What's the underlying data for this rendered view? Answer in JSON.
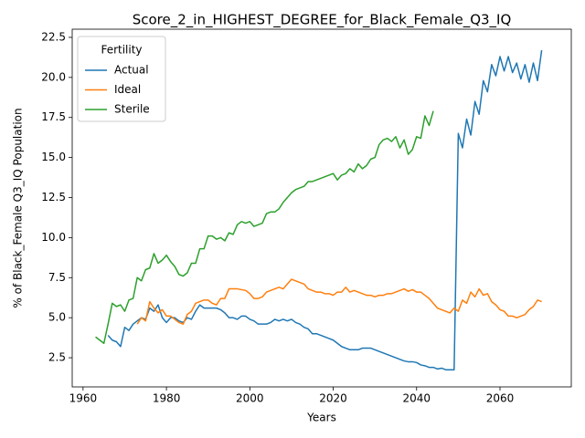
{
  "chart_data": {
    "type": "line",
    "title": "Score_2_in_HIGHEST_DEGREE_for_Black_Female_Q3_IQ",
    "xlabel": "Years",
    "ylabel": "% of Black_Female Q3_IQ Population",
    "legend_title": "Fertility",
    "legend": "upper left",
    "x": [
      1963,
      1964,
      1965,
      1966,
      1967,
      1968,
      1969,
      1970,
      1971,
      1972,
      1973,
      1974,
      1975,
      1976,
      1977,
      1978,
      1979,
      1980,
      1981,
      1982,
      1983,
      1984,
      1985,
      1986,
      1987,
      1988,
      1989,
      1990,
      1991,
      1992,
      1993,
      1994,
      1995,
      1996,
      1997,
      1998,
      1999,
      2000,
      2001,
      2002,
      2003,
      2004,
      2005,
      2006,
      2007,
      2008,
      2009,
      2010,
      2011,
      2012,
      2013,
      2014,
      2015,
      2016,
      2017,
      2018,
      2019,
      2020,
      2021,
      2022,
      2023,
      2024,
      2025,
      2026,
      2027,
      2028,
      2029,
      2030,
      2031,
      2032,
      2033,
      2034,
      2035,
      2036,
      2037,
      2038,
      2039,
      2040,
      2041,
      2042,
      2043,
      2044,
      2045,
      2046,
      2047,
      2048,
      2049,
      2050,
      2051,
      2052,
      2053,
      2054,
      2055,
      2056,
      2057,
      2058,
      2059,
      2060,
      2061,
      2062,
      2063,
      2064,
      2065,
      2066,
      2067,
      2068,
      2069,
      2070
    ],
    "series": [
      {
        "name": "Actual",
        "color": "#1f77b4",
        "values": [
          null,
          null,
          null,
          3.9,
          3.6,
          3.5,
          3.2,
          4.4,
          4.2,
          4.6,
          4.8,
          5.0,
          4.9,
          5.6,
          5.4,
          5.8,
          5.0,
          4.7,
          5.0,
          5.0,
          4.8,
          4.7,
          5.0,
          4.9,
          5.4,
          5.8,
          5.6,
          5.6,
          5.6,
          5.6,
          5.5,
          5.3,
          5.0,
          5.0,
          4.9,
          5.1,
          5.1,
          4.9,
          4.8,
          4.6,
          4.6,
          4.6,
          4.7,
          4.9,
          4.8,
          4.9,
          4.8,
          4.9,
          4.7,
          4.6,
          4.4,
          4.3,
          4.0,
          4.0,
          3.9,
          3.8,
          3.7,
          3.6,
          3.4,
          3.2,
          3.1,
          3.0,
          3.0,
          3.0,
          3.1,
          3.1,
          3.1,
          3.0,
          2.9,
          2.8,
          2.7,
          2.6,
          2.5,
          2.4,
          2.3,
          2.25,
          2.25,
          2.2,
          2.05,
          2.0,
          1.9,
          1.9,
          1.8,
          1.85,
          1.75,
          1.75,
          1.75,
          16.5,
          15.6,
          17.4,
          16.4,
          18.5,
          17.7,
          19.8,
          19.1,
          20.8,
          20.1,
          21.3,
          20.4,
          21.3,
          20.3,
          20.9,
          19.9,
          20.8,
          19.7,
          20.9,
          19.8,
          21.7
        ]
      },
      {
        "name": "Ideal",
        "color": "#ff7f0e",
        "values": [
          null,
          null,
          null,
          null,
          null,
          null,
          null,
          null,
          null,
          null,
          4.6,
          5.0,
          4.8,
          6.0,
          5.6,
          5.3,
          5.5,
          5.1,
          5.1,
          4.9,
          4.7,
          4.6,
          5.2,
          5.4,
          5.9,
          6.0,
          6.1,
          6.1,
          5.9,
          5.8,
          6.2,
          6.2,
          6.8,
          6.8,
          6.8,
          6.75,
          6.7,
          6.5,
          6.2,
          6.2,
          6.3,
          6.6,
          6.7,
          6.8,
          6.9,
          6.8,
          7.1,
          7.4,
          7.3,
          7.2,
          7.1,
          6.8,
          6.7,
          6.6,
          6.6,
          6.5,
          6.5,
          6.4,
          6.6,
          6.6,
          6.9,
          6.6,
          6.7,
          6.6,
          6.5,
          6.4,
          6.4,
          6.3,
          6.4,
          6.4,
          6.5,
          6.5,
          6.6,
          6.7,
          6.8,
          6.65,
          6.75,
          6.6,
          6.6,
          6.4,
          6.2,
          5.9,
          5.6,
          5.5,
          5.4,
          5.3,
          5.6,
          5.4,
          6.1,
          5.9,
          6.6,
          6.3,
          6.8,
          6.4,
          6.5,
          6.0,
          5.8,
          5.5,
          5.4,
          5.1,
          5.1,
          5.0,
          5.1,
          5.2,
          5.5,
          5.7,
          6.1,
          6.0
        ]
      },
      {
        "name": "Sterile",
        "color": "#2ca02c",
        "values": [
          3.8,
          3.6,
          3.4,
          4.6,
          5.9,
          5.7,
          5.8,
          5.4,
          6.1,
          6.2,
          7.5,
          7.3,
          8.0,
          8.1,
          9.0,
          8.4,
          8.6,
          8.9,
          8.5,
          8.2,
          7.7,
          7.6,
          7.8,
          8.4,
          8.4,
          9.3,
          9.3,
          10.1,
          10.1,
          9.9,
          10.0,
          9.8,
          10.3,
          10.2,
          10.8,
          11.0,
          10.9,
          11.0,
          10.7,
          10.8,
          10.9,
          11.5,
          11.6,
          11.6,
          11.8,
          12.2,
          12.5,
          12.8,
          13.0,
          13.1,
          13.2,
          13.5,
          13.5,
          13.6,
          13.7,
          13.8,
          13.9,
          14.0,
          13.6,
          13.9,
          14.0,
          14.3,
          14.1,
          14.6,
          14.3,
          14.5,
          14.9,
          15.0,
          15.8,
          16.1,
          16.2,
          16.0,
          16.3,
          15.6,
          16.1,
          15.2,
          15.5,
          16.3,
          16.2,
          17.6,
          17.0,
          17.9,
          null,
          null,
          null,
          null,
          null,
          null,
          null,
          null,
          null,
          null,
          null,
          null,
          null,
          null,
          null,
          null,
          null,
          null,
          null,
          null,
          null,
          null,
          null,
          null,
          null,
          null
        ]
      }
    ],
    "xlim": [
      1957.4,
      2077.1
    ],
    "xticks": [
      1960,
      1980,
      2000,
      2020,
      2040,
      2060
    ],
    "ylim": [
      0.68,
      23.01
    ],
    "yticks": [
      2.5,
      {
        "value": 5,
        "label": "5.0"
      },
      7.5,
      {
        "value": 10,
        "label": "10.0"
      },
      12.5,
      {
        "value": 15,
        "label": "15.0"
      },
      17.5,
      {
        "value": 20,
        "label": "20.0"
      },
      22.5
    ]
  }
}
